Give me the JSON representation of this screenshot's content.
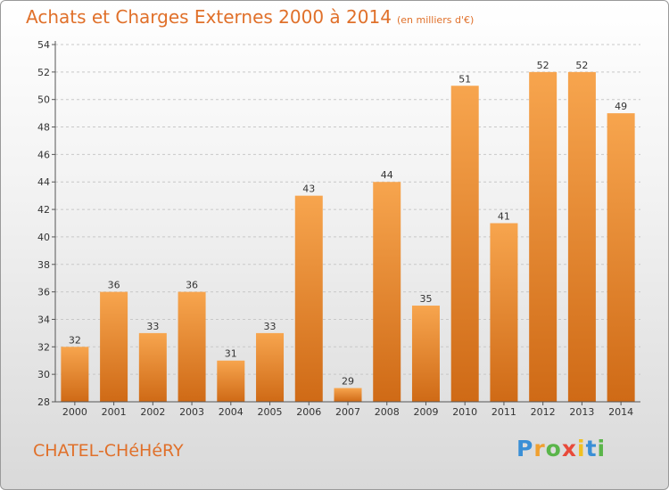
{
  "header": {
    "title": "Achats et Charges Externes 2000 à 2014",
    "subtitle": "(en milliers d'€)"
  },
  "footer": {
    "commune": "CHATEL-CHéHéRY",
    "logo": "Proxiti"
  },
  "colors": {
    "accent": "#e0702a",
    "bar_light": "#f7a54e",
    "bar_dark": "#cf6a16"
  },
  "chart_data": {
    "type": "bar",
    "title": "Achats et Charges Externes 2000 à 2014",
    "subtitle": "(en milliers d'€)",
    "categories": [
      "2000",
      "2001",
      "2002",
      "2003",
      "2004",
      "2005",
      "2006",
      "2007",
      "2008",
      "2009",
      "2010",
      "2011",
      "2012",
      "2013",
      "2014"
    ],
    "values": [
      32,
      36,
      33,
      36,
      31,
      33,
      43,
      29,
      44,
      35,
      51,
      41,
      52,
      52,
      49
    ],
    "xlabel": "",
    "ylabel": "",
    "ylim": [
      28,
      54
    ],
    "yticks": [
      28,
      30,
      32,
      34,
      36,
      38,
      40,
      42,
      44,
      46,
      48,
      50,
      52,
      54
    ],
    "grid": "horizontal dashed",
    "data_labels": true
  }
}
